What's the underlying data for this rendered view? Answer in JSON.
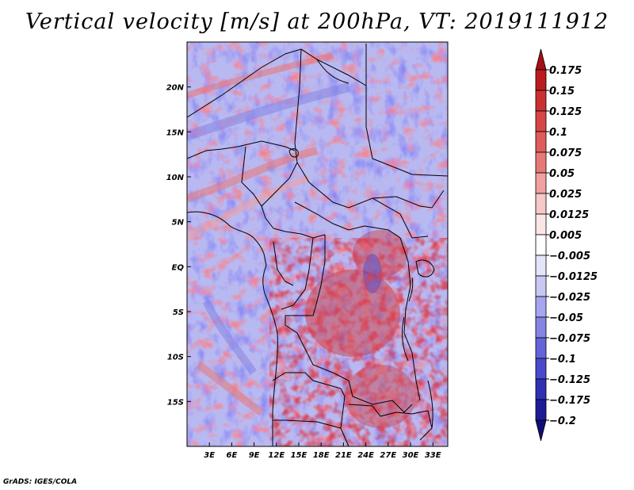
{
  "title": "Vertical velocity [m/s] at 200hPa, VT: 2019111912",
  "footer": "GrADS: IGES/COLA",
  "map": {
    "lat_range": [
      -20,
      25
    ],
    "lon_range": [
      0,
      35
    ],
    "lat_ticks": [
      {
        "label": "20N",
        "value": 20
      },
      {
        "label": "15N",
        "value": 15
      },
      {
        "label": "10N",
        "value": 10
      },
      {
        "label": "5N",
        "value": 5
      },
      {
        "label": "EQ",
        "value": 0
      },
      {
        "label": "5S",
        "value": -5
      },
      {
        "label": "10S",
        "value": -10
      },
      {
        "label": "15S",
        "value": -15
      }
    ],
    "lon_ticks": [
      {
        "label": "3E",
        "value": 3
      },
      {
        "label": "6E",
        "value": 6
      },
      {
        "label": "9E",
        "value": 9
      },
      {
        "label": "12E",
        "value": 12
      },
      {
        "label": "15E",
        "value": 15
      },
      {
        "label": "18E",
        "value": 18
      },
      {
        "label": "21E",
        "value": 21
      },
      {
        "label": "24E",
        "value": 24
      },
      {
        "label": "27E",
        "value": 27
      },
      {
        "label": "30E",
        "value": 30
      },
      {
        "label": "33E",
        "value": 33
      }
    ],
    "field": "vertical velocity",
    "level": "200hPa"
  },
  "colorbar": {
    "levels": [
      "0.175",
      "0.15",
      "0.125",
      "0.1",
      "0.075",
      "0.05",
      "0.025",
      "0.0125",
      "0.005",
      "-0.005",
      "-0.0125",
      "-0.025",
      "-0.05",
      "-0.075",
      "-0.1",
      "-0.125",
      "-0.175",
      "-0.2"
    ],
    "colors": [
      "#a50f15",
      "#bb1a1f",
      "#cb3030",
      "#d84545",
      "#e05c5c",
      "#e87878",
      "#f0a0a0",
      "#f7c8c8",
      "#fbe6e6",
      "#ffffff",
      "#e4e4fb",
      "#c8c8f5",
      "#a6a6ef",
      "#8585e6",
      "#6464da",
      "#4a4acd",
      "#3030b5",
      "#1c1c96",
      "#100d78"
    ]
  }
}
